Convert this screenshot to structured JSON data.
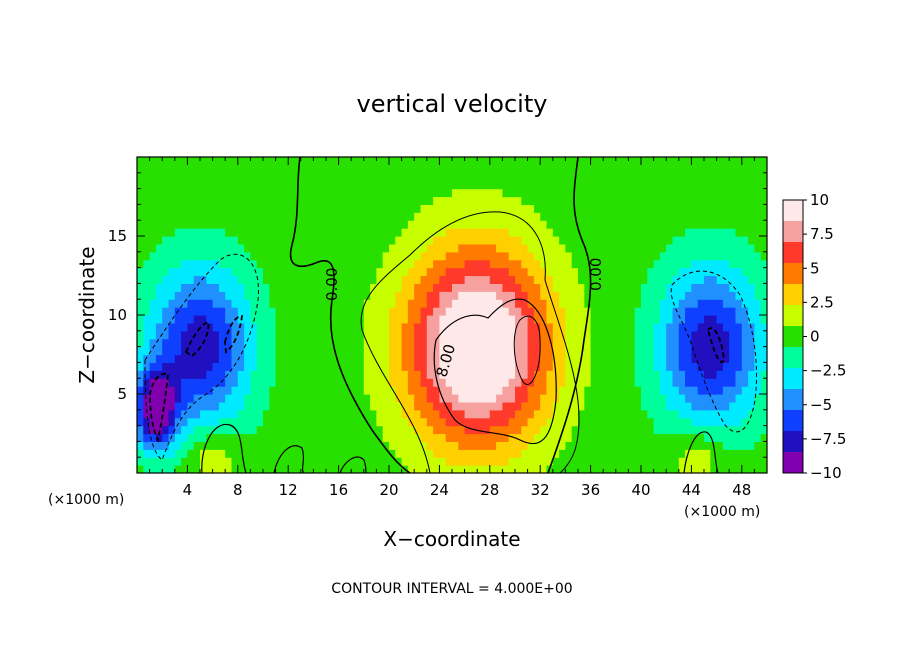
{
  "chart_data": {
    "type": "heatmap",
    "title": "vertical velocity",
    "xlabel": "X−coordinate",
    "ylabel": "Z−coordinate",
    "x_unit_left": "(×1000 m)",
    "x_unit_right": "(×1000 m)",
    "xlim": [
      0,
      50
    ],
    "ylim": [
      0,
      20
    ],
    "x_ticks": [
      4,
      8,
      12,
      16,
      20,
      24,
      28,
      32,
      36,
      40,
      44,
      48
    ],
    "x_tick_labels": [
      "4",
      "8",
      "12",
      "16",
      "20",
      "24",
      "28",
      "32",
      "36",
      "40",
      "44",
      "48"
    ],
    "y_ticks": [
      5,
      10,
      15
    ],
    "y_tick_labels": [
      "5",
      "10",
      "15"
    ],
    "colorbar": {
      "range": [
        -10,
        10
      ],
      "ticks": [
        10,
        7.5,
        5,
        2.5,
        0,
        -2.5,
        -5,
        -7.5,
        -10
      ],
      "tick_labels": [
        "10",
        "7.5",
        "5",
        "2.5",
        "0",
        "−2.5",
        "−5",
        "−7.5",
        "−10"
      ],
      "colors": [
        "#ffe8e8",
        "#f7a0a0",
        "#ff3a2a",
        "#ff7a00",
        "#ffd000",
        "#c8ff00",
        "#28e000",
        "#00ff9a",
        "#00eaff",
        "#2090ff",
        "#1040ff",
        "#2010c0",
        "#8000b0"
      ]
    },
    "contour_labels": [
      {
        "text": "0.00",
        "x": 15.5,
        "y": 12.5
      },
      {
        "text": "8.00",
        "x": 24.6,
        "y": 7.7
      },
      {
        "text": "0.00",
        "x": 35.2,
        "y": 12.5
      }
    ],
    "contour_interval_text": "CONTOUR INTERVAL = 4.000E+00",
    "features": [
      {
        "kind": "updraft",
        "x": 27,
        "z": 8,
        "peak": 12
      },
      {
        "kind": "downdraft",
        "x": 5,
        "z": 8,
        "peak": -8
      },
      {
        "kind": "downdraft",
        "x": 1.5,
        "z": 4,
        "peak": -10
      },
      {
        "kind": "downdraft",
        "x": 45.5,
        "z": 8,
        "peak": -8
      },
      {
        "kind": "weak_updraft",
        "x": 6,
        "z": 1,
        "peak": 2.5
      },
      {
        "kind": "weak_updraft",
        "x": 44.5,
        "z": 1,
        "peak": 2.5
      }
    ]
  }
}
